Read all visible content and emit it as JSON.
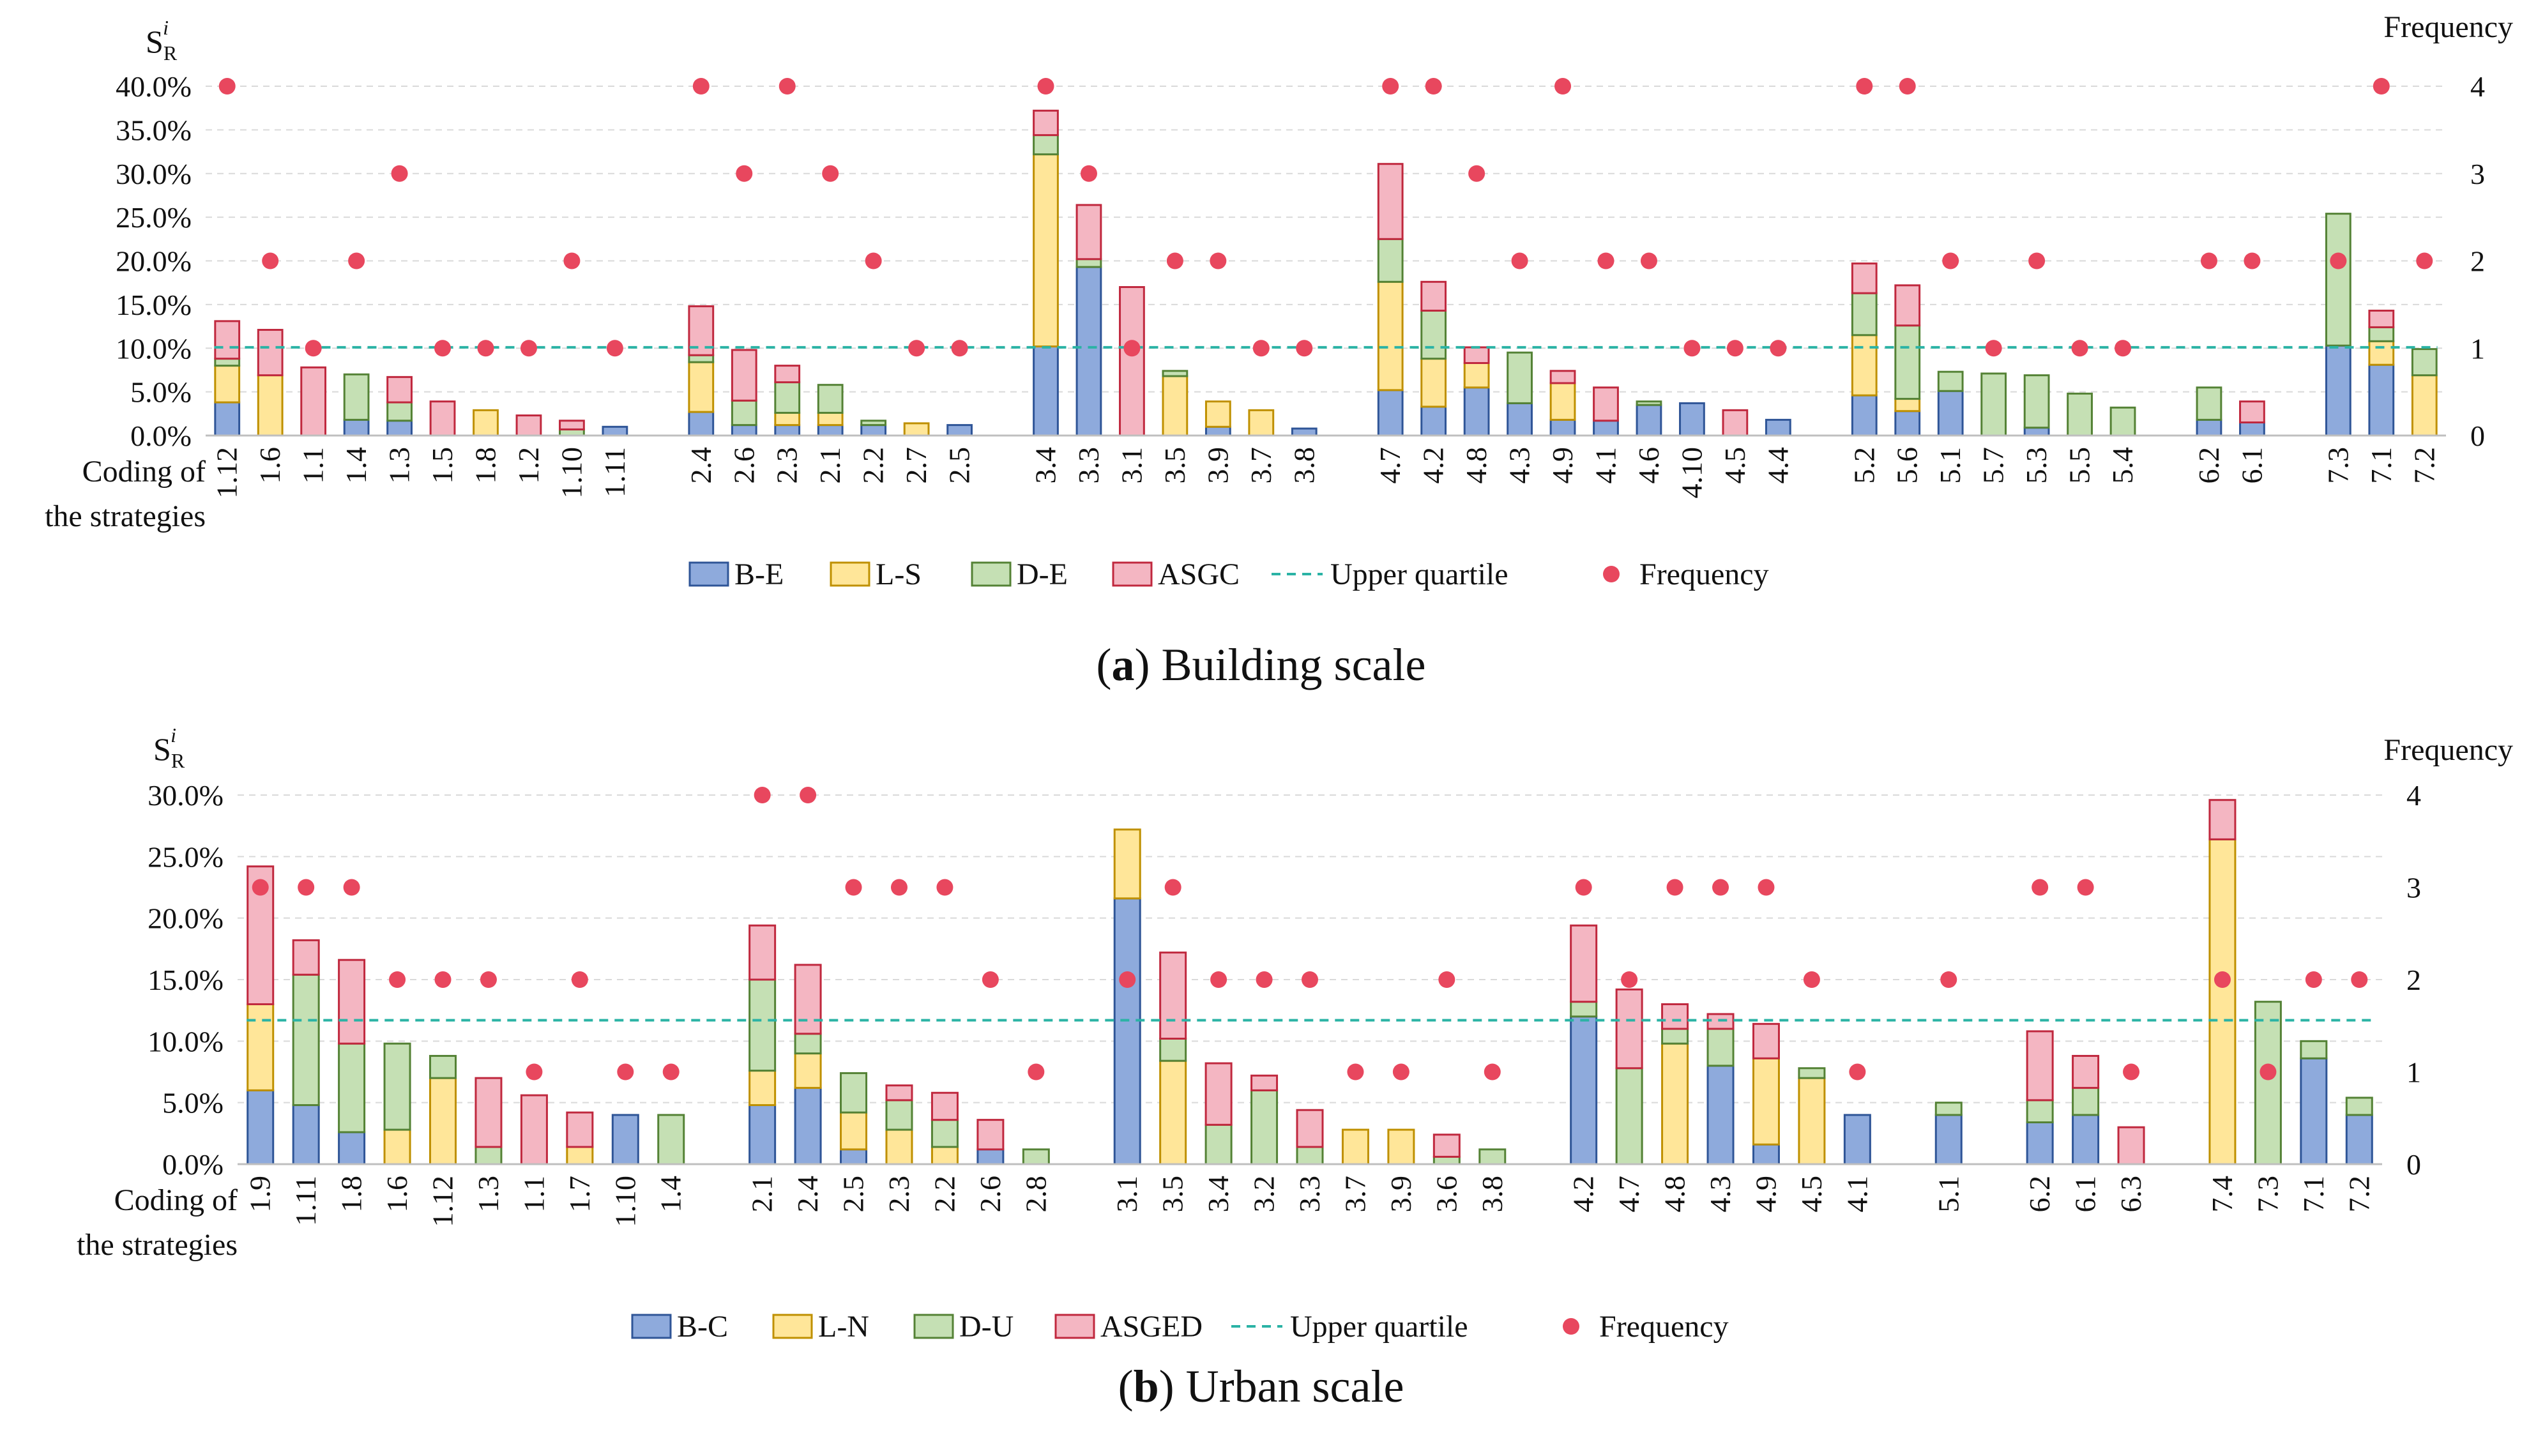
{
  "colors": {
    "s1": "#8eaadc",
    "s1_edge": "#2f5597",
    "s2": "#ffe699",
    "s2_edge": "#bf9000",
    "s3": "#c5e0b4",
    "s3_edge": "#548235",
    "s4": "#f4b6c2",
    "s4_edge": "#c0283e",
    "quartile": "#2bb3a5",
    "frequency": "#e8475e"
  },
  "chart_data": [
    {
      "type": "bar",
      "stacked": true,
      "panel_letter": "a",
      "caption": "Building scale",
      "y_left_title": "S_R^i",
      "y_left_title_main": "S",
      "y_left_title_sub": "R",
      "y_left_title_sup": "i",
      "y_right_title": "Frequency",
      "x_title_line1": "Coding of",
      "x_title_line2": "the strategies",
      "ylim": [
        0,
        40
      ],
      "yticks": [
        "0.0%",
        "5.0%",
        "10.0%",
        "15.0%",
        "20.0%",
        "25.0%",
        "30.0%",
        "35.0%",
        "40.0%"
      ],
      "y2lim": [
        0,
        4
      ],
      "y2ticks": [
        "0",
        "1",
        "2",
        "3",
        "4"
      ],
      "upper_quartile": 10.1,
      "groups": [
        [
          "1.12",
          "1.6",
          "1.1",
          "1.4",
          "1.3",
          "1.5",
          "1.8",
          "1.2",
          "1.10",
          "1.11"
        ],
        [
          "2.4",
          "2.6",
          "2.3",
          "2.1",
          "2.2",
          "2.7",
          "2.5"
        ],
        [
          "3.4",
          "3.3",
          "3.1",
          "3.5",
          "3.9",
          "3.7",
          "3.8"
        ],
        [
          "4.7",
          "4.2",
          "4.8",
          "4.3",
          "4.9",
          "4.1",
          "4.6",
          "4.10",
          "4.5",
          "4.4"
        ],
        [
          "5.2",
          "5.6",
          "5.1",
          "5.7",
          "5.3",
          "5.5",
          "5.4"
        ],
        [
          "6.2",
          "6.1"
        ],
        [
          "7.3",
          "7.1",
          "7.2"
        ]
      ],
      "series": [
        {
          "name": "B-E",
          "values": [
            3.8,
            0,
            0,
            1.8,
            1.7,
            0,
            0,
            0,
            0,
            1.0,
            2.7,
            1.2,
            1.2,
            1.2,
            1.2,
            0,
            1.2,
            10.2,
            19.3,
            0,
            0,
            1.0,
            0,
            0.8,
            5.2,
            3.3,
            5.5,
            3.7,
            1.8,
            1.7,
            3.5,
            3.7,
            0,
            1.8,
            4.6,
            2.8,
            5.1,
            0,
            0.9,
            0,
            0,
            1.8,
            1.5,
            10.3,
            8.1,
            0
          ]
        },
        {
          "name": "L-S",
          "values": [
            4.2,
            6.9,
            0,
            0,
            0,
            0,
            2.9,
            0,
            0,
            0,
            5.7,
            0,
            1.4,
            1.4,
            0,
            1.4,
            0,
            22.0,
            0,
            0,
            6.8,
            2.9,
            2.9,
            0,
            12.4,
            5.5,
            2.8,
            0,
            4.2,
            0,
            0,
            0,
            0,
            0,
            6.9,
            1.4,
            0,
            0,
            0,
            0,
            0,
            0,
            0,
            0,
            2.7,
            6.9
          ]
        },
        {
          "name": "D-E",
          "values": [
            0.8,
            0,
            0,
            5.2,
            2.1,
            0,
            0,
            0,
            0.7,
            0,
            0.8,
            2.8,
            3.5,
            3.2,
            0.5,
            0,
            0,
            2.2,
            0.9,
            0,
            0.6,
            0,
            0,
            0,
            4.9,
            5.5,
            0,
            5.8,
            0,
            0,
            0.4,
            0,
            0,
            0,
            4.8,
            8.4,
            2.2,
            7.1,
            6.0,
            4.8,
            3.2,
            3.7,
            0,
            15.1,
            1.6,
            3.0
          ]
        },
        {
          "name": "ASGC",
          "values": [
            4.3,
            5.2,
            7.8,
            0,
            2.9,
            3.9,
            0,
            2.3,
            1.0,
            0,
            5.6,
            5.8,
            1.9,
            0,
            0,
            0,
            0,
            2.8,
            6.2,
            17.0,
            0,
            0,
            0,
            0,
            8.6,
            3.3,
            1.8,
            0,
            1.4,
            3.8,
            0,
            0,
            2.9,
            0,
            3.4,
            4.6,
            0,
            0,
            0,
            0,
            0,
            0,
            2.4,
            0,
            1.9,
            0
          ]
        }
      ],
      "frequency": [
        4,
        2,
        1,
        2,
        3,
        1,
        1,
        1,
        2,
        1,
        4,
        3,
        4,
        3,
        2,
        1,
        1,
        4,
        3,
        1,
        2,
        2,
        1,
        1,
        4,
        4,
        3,
        2,
        4,
        2,
        2,
        1,
        1,
        1,
        4,
        4,
        2,
        1,
        2,
        1,
        1,
        2,
        2,
        2,
        4,
        2
      ],
      "legend": [
        "B-E",
        "L-S",
        "D-E",
        "ASGC",
        "Upper quartile",
        "Frequency"
      ]
    },
    {
      "type": "bar",
      "stacked": true,
      "panel_letter": "b",
      "caption": "Urban scale",
      "y_left_title": "S_R^i",
      "y_left_title_main": "S",
      "y_left_title_sub": "R",
      "y_left_title_sup": "i",
      "y_right_title": "Frequency",
      "x_title_line1": "Coding of",
      "x_title_line2": "the strategies",
      "ylim": [
        0,
        30
      ],
      "yticks": [
        "0.0%",
        "5.0%",
        "10.0%",
        "15.0%",
        "20.0%",
        "25.0%",
        "30.0%"
      ],
      "y2lim": [
        0,
        4
      ],
      "y2ticks": [
        "0",
        "1",
        "2",
        "3",
        "4"
      ],
      "upper_quartile": 11.7,
      "groups": [
        [
          "1.9",
          "1.11",
          "1.8",
          "1.6",
          "1.12",
          "1.3",
          "1.1",
          "1.7",
          "1.10",
          "1.4"
        ],
        [
          "2.1",
          "2.4",
          "2.5",
          "2.3",
          "2.2",
          "2.6",
          "2.8"
        ],
        [
          "3.1",
          "3.5",
          "3.4",
          "3.2",
          "3.3",
          "3.7",
          "3.9",
          "3.6",
          "3.8"
        ],
        [
          "4.2",
          "4.7",
          "4.8",
          "4.3",
          "4.9",
          "4.5",
          "4.1"
        ],
        [
          "5.1"
        ],
        [
          "6.2",
          "6.1",
          "6.3"
        ],
        [
          "7.4",
          "7.3",
          "7.1",
          "7.2"
        ]
      ],
      "series": [
        {
          "name": "B-C",
          "values": [
            6.0,
            4.8,
            2.6,
            0,
            0,
            0,
            0,
            0,
            4.0,
            0,
            4.8,
            6.2,
            1.2,
            0,
            0,
            1.2,
            0,
            21.6,
            0,
            0,
            0,
            0,
            0,
            0,
            0,
            0,
            12.0,
            0,
            0,
            8.0,
            1.6,
            0,
            4.0,
            4.0,
            3.4,
            4.0,
            0,
            0,
            0,
            8.6,
            4.0
          ]
        },
        {
          "name": "L-N",
          "values": [
            7.0,
            0,
            0,
            2.8,
            7.0,
            0,
            0,
            1.4,
            0,
            0,
            2.8,
            2.8,
            3.0,
            2.8,
            1.4,
            0,
            0,
            5.6,
            8.4,
            0,
            0,
            0,
            2.8,
            2.8,
            0,
            0,
            0,
            0,
            9.8,
            0,
            7.0,
            7.0,
            0,
            0,
            0,
            0,
            0,
            26.4,
            0,
            0,
            0
          ]
        },
        {
          "name": "D-U",
          "values": [
            0,
            10.6,
            7.2,
            7.0,
            1.8,
            1.4,
            0,
            0,
            0,
            4.0,
            7.4,
            1.6,
            3.2,
            2.4,
            2.2,
            0,
            1.2,
            0,
            1.8,
            3.2,
            6.0,
            1.4,
            0,
            0,
            0.6,
            1.2,
            1.2,
            7.8,
            1.2,
            3.0,
            0,
            0.8,
            0,
            1.0,
            1.8,
            2.2,
            0,
            0,
            13.2,
            1.4,
            1.4
          ]
        },
        {
          "name": "ASGED",
          "values": [
            11.2,
            2.8,
            6.8,
            0,
            0,
            5.6,
            5.6,
            2.8,
            0,
            0,
            4.4,
            5.6,
            0,
            1.2,
            2.2,
            2.4,
            0,
            0,
            7.0,
            5.0,
            1.2,
            3.0,
            0,
            0,
            1.8,
            0,
            6.2,
            6.4,
            2.0,
            1.2,
            2.8,
            0,
            0,
            0,
            5.6,
            2.6,
            3.0,
            3.2,
            0,
            0,
            0
          ]
        }
      ],
      "frequency": [
        3,
        3,
        3,
        2,
        2,
        2,
        1,
        2,
        1,
        1,
        4,
        4,
        3,
        3,
        3,
        2,
        1,
        2,
        3,
        2,
        2,
        2,
        1,
        1,
        2,
        1,
        3,
        2,
        3,
        3,
        3,
        2,
        1,
        2,
        3,
        3,
        1,
        2,
        1,
        2,
        2
      ],
      "legend": [
        "B-C",
        "L-N",
        "D-U",
        "ASGED",
        "Upper quartile",
        "Frequency"
      ]
    }
  ]
}
